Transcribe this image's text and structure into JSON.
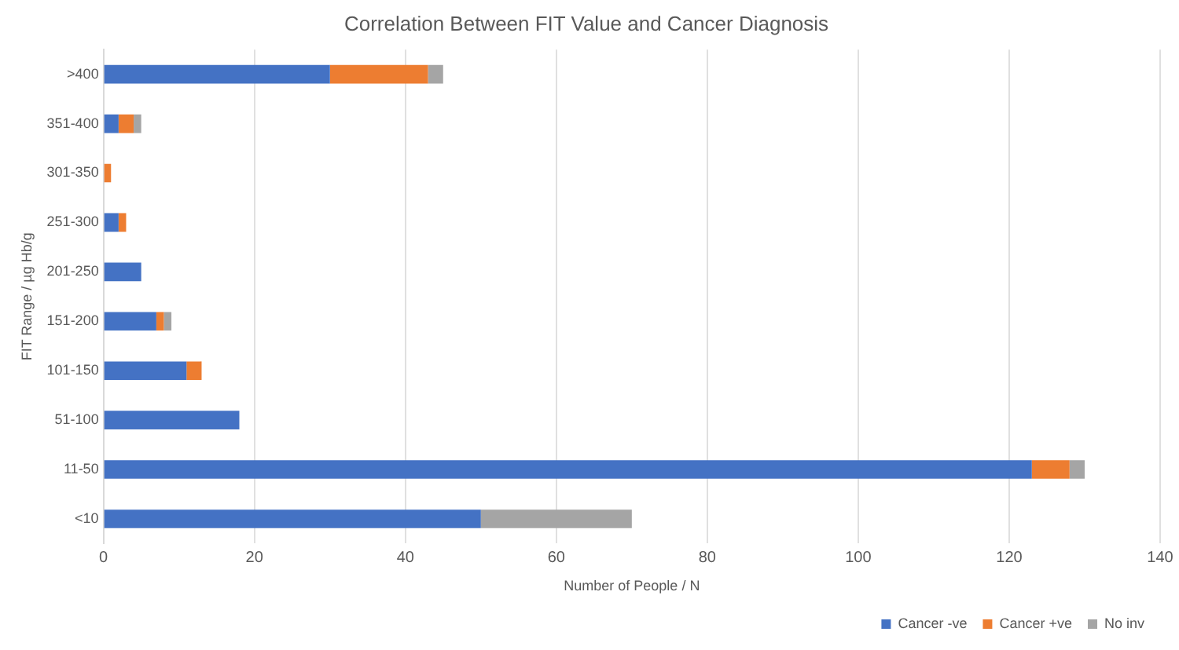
{
  "chart_data": {
    "type": "bar",
    "title": "Correlation Between FIT Value and Cancer Diagnosis",
    "xlabel": "Number of People / N",
    "ylabel": "FIT Range / µg Hb/g",
    "orientation": "horizontal",
    "stacked": true,
    "categories": [
      ">400",
      "351-400",
      "301-350",
      "251-300",
      "201-250",
      "151-200",
      "101-150",
      "51-100",
      "11-50",
      "<10"
    ],
    "series": [
      {
        "name": "Cancer -ve",
        "color": "#4472c4",
        "values": [
          30,
          2,
          0,
          2,
          5,
          7,
          11,
          18,
          123,
          50
        ]
      },
      {
        "name": "Cancer +ve",
        "color": "#ed7d31",
        "values": [
          13,
          2,
          1,
          1,
          0,
          1,
          2,
          0,
          5,
          0
        ]
      },
      {
        "name": "No inv",
        "color": "#a5a5a5",
        "values": [
          2,
          1,
          0,
          0,
          0,
          1,
          0,
          0,
          2,
          20
        ]
      }
    ],
    "xlim": [
      0,
      140
    ],
    "xticks": [
      0,
      20,
      40,
      60,
      80,
      100,
      120,
      140
    ],
    "grid": "x",
    "legend": "bottom right"
  }
}
